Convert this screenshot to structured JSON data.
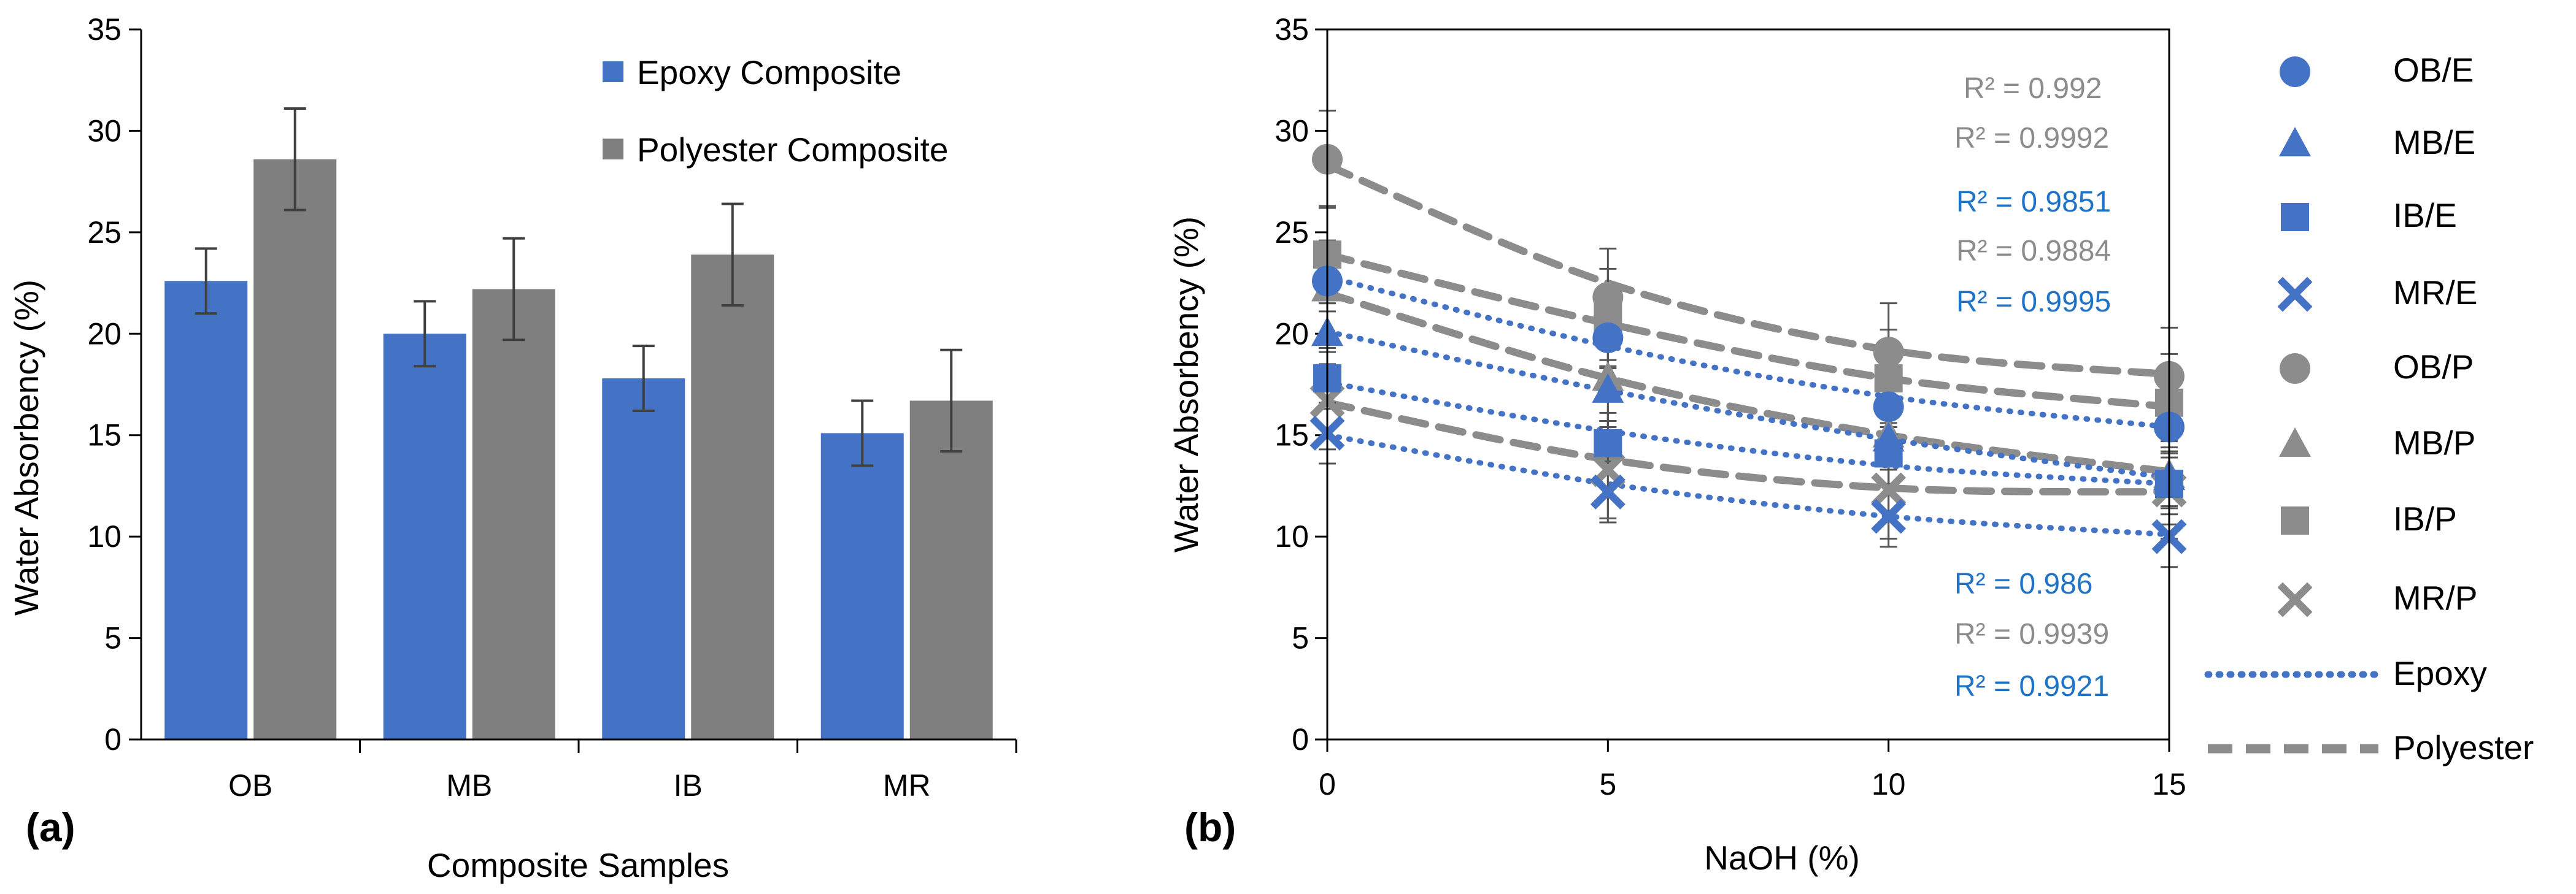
{
  "chart_data": [
    {
      "type": "bar",
      "panel_label": "(a)",
      "title": "",
      "xlabel": "Composite Samples",
      "ylabel": "Water Absorbency (%)",
      "ylim": [
        0,
        35
      ],
      "yticks": [
        0,
        5,
        10,
        15,
        20,
        25,
        30,
        35
      ],
      "categories": [
        "OB",
        "MB",
        "IB",
        "MR"
      ],
      "legend_position": "top-right",
      "series": [
        {
          "name": "Epoxy Composite",
          "color": "#4472C4",
          "values": [
            22.6,
            20.0,
            17.8,
            15.1
          ],
          "errors": [
            1.6,
            1.6,
            1.6,
            1.6
          ]
        },
        {
          "name": "Polyester Composite",
          "color": "#7F7F7F",
          "values": [
            28.6,
            22.2,
            23.9,
            16.7
          ],
          "errors": [
            2.5,
            2.5,
            2.5,
            2.5
          ]
        }
      ]
    },
    {
      "type": "scatter",
      "panel_label": "(b)",
      "title": "",
      "xlabel": "NaOH (%)",
      "ylabel": "Water Absorbency (%)",
      "xlim": [
        0,
        15
      ],
      "ylim": [
        0,
        35
      ],
      "xticks": [
        0,
        5,
        10,
        15
      ],
      "yticks": [
        0,
        5,
        10,
        15,
        20,
        25,
        30,
        35
      ],
      "legend_position": "right",
      "x": [
        0,
        5,
        10,
        15
      ],
      "series": [
        {
          "name": "OB/E",
          "marker": "circle",
          "color": "#4472C4",
          "values": [
            22.6,
            19.8,
            16.4,
            15.4
          ],
          "trend": [
            22.8,
            19.4,
            16.9,
            15.4
          ],
          "errors": [
            1.5,
            1.5,
            1.5,
            1.5
          ]
        },
        {
          "name": "MB/E",
          "marker": "triangle",
          "color": "#4472C4",
          "values": [
            20.0,
            17.2,
            14.8,
            12.9
          ],
          "trend": [
            20.1,
            17.2,
            14.8,
            12.9
          ],
          "errors": [
            1.5,
            1.5,
            1.5,
            1.5
          ]
        },
        {
          "name": "IB/E",
          "marker": "square",
          "color": "#4472C4",
          "values": [
            17.8,
            14.6,
            14.1,
            12.6
          ],
          "trend": [
            17.6,
            15.2,
            13.5,
            12.6
          ],
          "errors": [
            1.5,
            1.5,
            1.5,
            1.5
          ]
        },
        {
          "name": "MR/E",
          "marker": "x",
          "color": "#4472C4",
          "values": [
            15.1,
            12.2,
            11.0,
            10.0
          ],
          "trend": [
            15.0,
            12.6,
            11.0,
            10.1
          ],
          "errors": [
            1.5,
            1.5,
            1.5,
            1.5
          ]
        },
        {
          "name": "OB/P",
          "marker": "circle",
          "color": "#8C8C8C",
          "values": [
            28.6,
            21.8,
            19.1,
            17.9
          ],
          "trend": [
            28.3,
            22.5,
            19.2,
            18.0
          ],
          "errors": [
            2.4,
            2.4,
            2.4,
            2.4
          ]
        },
        {
          "name": "MB/P",
          "marker": "triangle",
          "color": "#8C8C8C",
          "values": [
            22.2,
            17.8,
            15.0,
            13.0
          ],
          "trend": [
            22.0,
            17.8,
            15.0,
            13.2
          ],
          "errors": [
            2.4,
            2.4,
            2.4,
            2.4
          ]
        },
        {
          "name": "IB/P",
          "marker": "square",
          "color": "#8C8C8C",
          "values": [
            23.9,
            20.8,
            17.8,
            16.6
          ],
          "trend": [
            23.9,
            20.5,
            17.8,
            16.4
          ],
          "errors": [
            2.4,
            2.4,
            2.4,
            2.4
          ]
        },
        {
          "name": "MR/P",
          "marker": "x",
          "color": "#8C8C8C",
          "values": [
            16.7,
            13.3,
            12.3,
            12.3
          ],
          "trend": [
            16.6,
            13.8,
            12.4,
            12.2
          ],
          "errors": [
            2.4,
            2.4,
            2.4,
            2.4
          ]
        }
      ],
      "trendline_legend": [
        {
          "name": "Epoxy",
          "style": "dotted",
          "color": "#4472C4"
        },
        {
          "name": "Polyester",
          "style": "dashed",
          "color": "#8C8C8C"
        }
      ],
      "r2_labels": [
        {
          "text": "R² = 0.992",
          "color": "#8C8C8C"
        },
        {
          "text": "R² = 0.9992",
          "color": "#8C8C8C"
        },
        {
          "text": "R² = 0.9851",
          "color": "#1F73C6"
        },
        {
          "text": "R² = 0.9884",
          "color": "#8C8C8C"
        },
        {
          "text": "R² = 0.9995",
          "color": "#1F73C6"
        },
        {
          "text": "R² = 0.986",
          "color": "#1F73C6"
        },
        {
          "text": "R² = 0.9939",
          "color": "#8C8C8C"
        },
        {
          "text": "R² = 0.9921",
          "color": "#1F73C6"
        }
      ]
    }
  ]
}
